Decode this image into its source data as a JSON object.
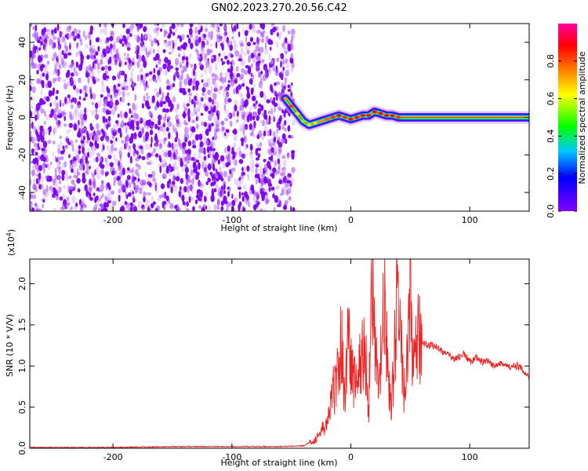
{
  "figure": {
    "title": "GN02.2023.270.20.56.C42"
  },
  "chart_data": [
    {
      "type": "heatmap",
      "title": "GN02.2023.270.20.56.C42",
      "xlabel": "Height of straight line (km)",
      "ylabel": "Frequency (Hz)",
      "xlim": [
        -270,
        150
      ],
      "ylim": [
        -50,
        50
      ],
      "xticks": [
        -200,
        -100,
        0,
        100
      ],
      "yticks": [
        -40,
        -20,
        0,
        20,
        40
      ],
      "colorbar": {
        "label": "Normalized spectral amplitude",
        "range": [
          0,
          1
        ],
        "ticks": [
          "0.0",
          "0.2",
          "0.4",
          "0.6",
          "0.8"
        ],
        "colormap": [
          "#8000ff",
          "#0000ff",
          "#00c8ff",
          "#00ff00",
          "#ffff00",
          "#ff8000",
          "#ff0000",
          "#ff00a0"
        ]
      },
      "noise_region": {
        "x_range": [
          -270,
          -52
        ],
        "dominant_amplitude": 0.1
      },
      "signal_trace": {
        "x": [
          -55,
          -50,
          -45,
          -40,
          -35,
          -30,
          -25,
          -20,
          -15,
          -10,
          -5,
          0,
          5,
          10,
          15,
          20,
          25,
          30,
          35,
          40,
          50,
          60,
          80,
          100,
          120,
          150
        ],
        "frequency": [
          10,
          6,
          2,
          -2,
          -4,
          -3,
          -2,
          -1,
          0,
          1,
          0,
          -1,
          0,
          1,
          1,
          3,
          2,
          1,
          1,
          0,
          0,
          0,
          0,
          0,
          0,
          0
        ],
        "peak_amplitude": [
          0.7,
          0.8,
          0.6,
          0.5,
          0.6,
          0.6,
          0.7,
          0.75,
          0.8,
          0.85,
          0.8,
          0.85,
          0.85,
          0.85,
          0.85,
          0.85,
          0.85,
          0.85,
          0.85,
          0.8,
          0.85,
          0.85,
          0.9,
          0.9,
          0.9,
          0.9
        ]
      }
    },
    {
      "type": "line",
      "xlabel": "Height of straight line (km)",
      "ylabel": "SNR (10 * V/V)",
      "y_multiplier": "(x10^4)",
      "y_multiplier_base": "(x10",
      "y_multiplier_exp": "4",
      "y_multiplier_close": ")",
      "xlim": [
        -270,
        150
      ],
      "ylim": [
        0,
        2.3
      ],
      "xticks": [
        -200,
        -100,
        0,
        100
      ],
      "yticks": [
        "0.0",
        "0.5",
        "1.0",
        "1.5",
        "2.0"
      ],
      "series_color": "#ee2222",
      "series": [
        {
          "x": [
            -270,
            -250,
            -200,
            -150,
            -100,
            -80,
            -60,
            -40,
            -30,
            -25,
            -20,
            -17,
            -15,
            -12,
            -10,
            -8,
            -5,
            -2,
            0,
            3,
            6,
            9,
            12,
            15,
            18,
            20,
            23,
            26,
            28,
            31,
            34,
            37,
            40,
            43,
            46,
            50,
            53,
            56,
            60,
            65,
            70,
            75,
            80,
            85,
            90,
            95,
            100,
            105,
            110,
            115,
            120,
            125,
            130,
            135,
            140,
            145,
            150
          ],
          "y": [
            0.01,
            0.01,
            0.01,
            0.02,
            0.02,
            0.02,
            0.02,
            0.03,
            0.1,
            0.2,
            0.3,
            0.5,
            0.7,
            0.8,
            1.1,
            1.3,
            0.6,
            1.5,
            1.0,
            0.8,
            0.9,
            1.1,
            1.2,
            0.5,
            2.3,
            1.2,
            0.7,
            1.2,
            1.8,
            1.0,
            0.4,
            1.3,
            2.0,
            1.0,
            0.6,
            1.9,
            0.9,
            1.3,
            1.3,
            1.25,
            1.25,
            1.2,
            1.15,
            1.1,
            1.1,
            1.15,
            1.05,
            1.1,
            1.05,
            1.05,
            1.0,
            1.05,
            1.0,
            0.98,
            1.0,
            0.95,
            0.85
          ]
        }
      ]
    }
  ]
}
